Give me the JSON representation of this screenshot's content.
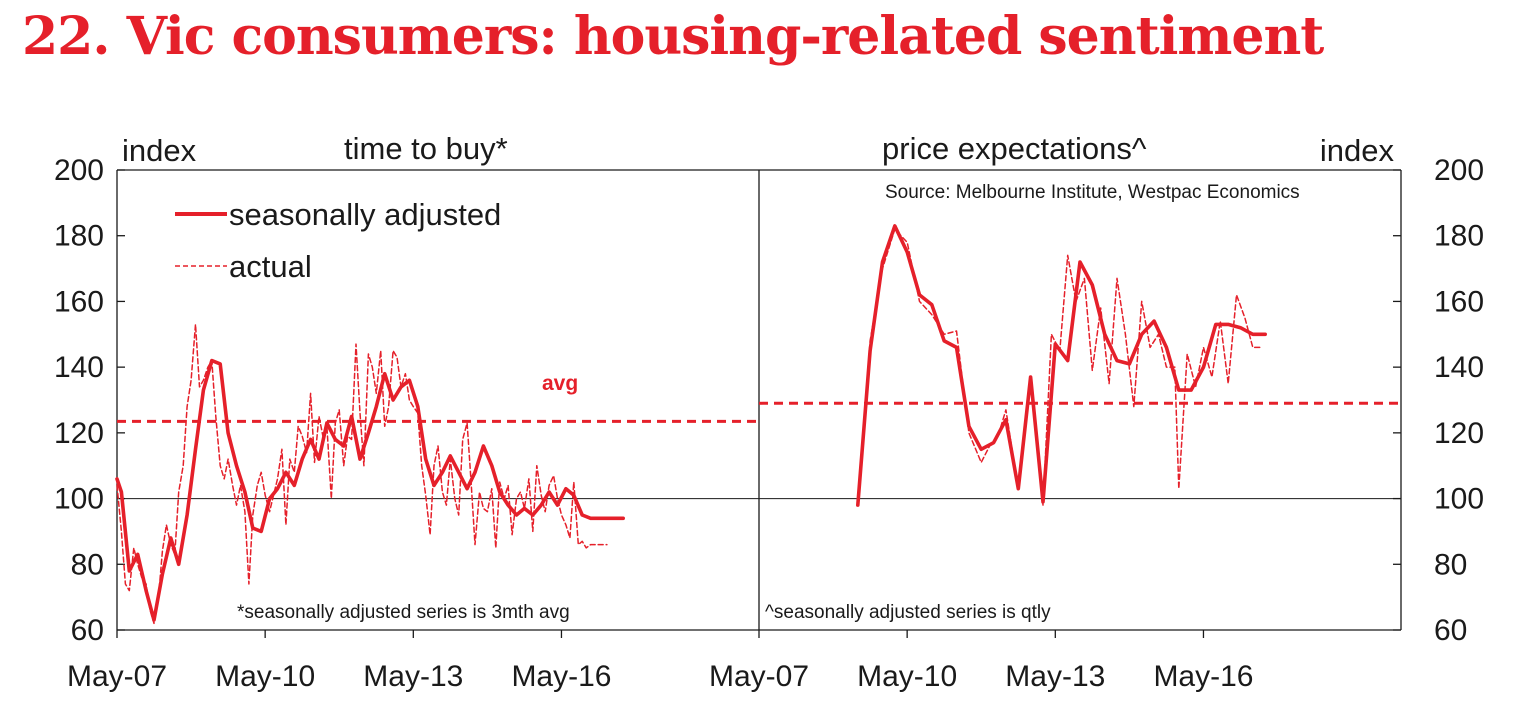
{
  "title": "22. Vic consumers: housing-related sentiment",
  "colors": {
    "accent": "#e5202a",
    "axis": "#1a1a1a"
  },
  "chart_data": [
    {
      "type": "line",
      "title": "time to buy*",
      "ylabel": "index",
      "xlim": [
        2007.33,
        2020.33
      ],
      "ylim": [
        60,
        200
      ],
      "yticks": [
        "200",
        "180",
        "160",
        "140",
        "120",
        "100",
        "80",
        "60"
      ],
      "xticks": [
        "May-07",
        "May-10",
        "May-13",
        "May-16"
      ],
      "legend": {
        "seasonally_adjusted": "seasonally adjusted",
        "actual": "actual",
        "position": "top-left"
      },
      "avg_label": "avg",
      "avg_value": 123.5,
      "reference_line": 100,
      "footnote": "*seasonally adjusted series is 3mth avg",
      "series": [
        {
          "name": "seasonally adjusted",
          "style": "solid",
          "x": [
            2007.33,
            2007.42,
            2007.58,
            2007.75,
            2007.92,
            2008.08,
            2008.25,
            2008.42,
            2008.58,
            2008.75,
            2008.92,
            2009.08,
            2009.25,
            2009.42,
            2009.58,
            2009.75,
            2009.92,
            2010.08,
            2010.25,
            2010.42,
            2010.58,
            2010.75,
            2010.92,
            2011.08,
            2011.25,
            2011.42,
            2011.58,
            2011.75,
            2011.92,
            2012.08,
            2012.25,
            2012.42,
            2012.58,
            2012.75,
            2012.92,
            2013.08,
            2013.25,
            2013.42,
            2013.58,
            2013.75,
            2013.92,
            2014.08,
            2014.25,
            2014.42,
            2014.58,
            2014.75,
            2014.92,
            2015.08,
            2015.25,
            2015.42,
            2015.58,
            2015.75,
            2015.92,
            2016.08,
            2016.25,
            2016.42,
            2016.58,
            2016.75,
            2016.92,
            2017.08,
            2017.25,
            2017.42,
            2017.58
          ],
          "y": [
            106,
            102,
            78,
            83,
            72,
            63,
            77,
            88,
            80,
            95,
            115,
            133,
            142,
            141,
            120,
            110,
            102,
            91,
            90,
            100,
            103,
            108,
            104,
            112,
            118,
            112,
            123,
            118,
            116,
            125,
            112,
            120,
            128,
            138,
            130,
            134,
            136,
            128,
            112,
            104,
            108,
            113,
            108,
            103,
            108,
            116,
            110,
            102,
            98,
            95,
            97,
            95,
            98,
            102,
            98,
            103,
            101,
            95,
            94,
            94,
            94,
            94,
            94
          ]
        },
        {
          "name": "actual",
          "style": "dashed",
          "x": [
            2007.33,
            2007.42,
            2007.5,
            2007.58,
            2007.67,
            2007.75,
            2007.83,
            2007.92,
            2008.0,
            2008.08,
            2008.17,
            2008.25,
            2008.33,
            2008.42,
            2008.5,
            2008.58,
            2008.67,
            2008.75,
            2008.83,
            2008.92,
            2009.0,
            2009.08,
            2009.17,
            2009.25,
            2009.33,
            2009.42,
            2009.5,
            2009.58,
            2009.67,
            2009.75,
            2009.83,
            2009.92,
            2010.0,
            2010.08,
            2010.17,
            2010.25,
            2010.33,
            2010.42,
            2010.5,
            2010.58,
            2010.67,
            2010.75,
            2010.83,
            2010.92,
            2011.0,
            2011.08,
            2011.17,
            2011.25,
            2011.33,
            2011.42,
            2011.5,
            2011.58,
            2011.67,
            2011.75,
            2011.83,
            2011.92,
            2012.0,
            2012.08,
            2012.17,
            2012.25,
            2012.33,
            2012.42,
            2012.5,
            2012.58,
            2012.67,
            2012.75,
            2012.83,
            2012.92,
            2013.0,
            2013.08,
            2013.17,
            2013.25,
            2013.33,
            2013.42,
            2013.5,
            2013.58,
            2013.67,
            2013.75,
            2013.83,
            2013.92,
            2014.0,
            2014.08,
            2014.17,
            2014.25,
            2014.33,
            2014.42,
            2014.5,
            2014.58,
            2014.67,
            2014.75,
            2014.83,
            2014.92,
            2015.0,
            2015.08,
            2015.17,
            2015.25,
            2015.33,
            2015.42,
            2015.5,
            2015.58,
            2015.67,
            2015.75,
            2015.83,
            2015.92,
            2016.0,
            2016.08,
            2016.17,
            2016.25,
            2016.33,
            2016.42,
            2016.5,
            2016.58,
            2016.67,
            2016.75,
            2016.83,
            2016.92,
            2017.0,
            2017.08,
            2017.17,
            2017.25
          ],
          "y": [
            104,
            90,
            74,
            72,
            85,
            80,
            76,
            74,
            66,
            62,
            70,
            84,
            92,
            86,
            83,
            102,
            110,
            128,
            136,
            153,
            134,
            136,
            140,
            142,
            125,
            110,
            106,
            112,
            104,
            98,
            104,
            96,
            74,
            95,
            104,
            108,
            101,
            96,
            101,
            106,
            115,
            92,
            112,
            108,
            122,
            119,
            114,
            132,
            111,
            125,
            119,
            122,
            100,
            123,
            127,
            110,
            119,
            118,
            147,
            126,
            110,
            144,
            140,
            132,
            145,
            122,
            128,
            145,
            143,
            134,
            138,
            130,
            128,
            126,
            110,
            101,
            89,
            110,
            116,
            102,
            98,
            112,
            100,
            95,
            118,
            123,
            105,
            86,
            102,
            97,
            96,
            103,
            85,
            105,
            100,
            104,
            89,
            100,
            102,
            97,
            106,
            90,
            110,
            101,
            96,
            104,
            107,
            100,
            95,
            92,
            88,
            105,
            86,
            87,
            85,
            86,
            86,
            86,
            86,
            86
          ]
        }
      ]
    },
    {
      "type": "line",
      "title": "price expectations^",
      "ylabel": "index",
      "xlim": [
        2007.33,
        2020.33
      ],
      "ylim": [
        60,
        200
      ],
      "yticks": [
        "200",
        "180",
        "160",
        "140",
        "120",
        "100",
        "80",
        "60"
      ],
      "xticks": [
        "May-07",
        "May-10",
        "May-13",
        "May-16"
      ],
      "source": "Source: Melbourne Institute, Westpac Economics",
      "avg_value": 129,
      "reference_line": 100,
      "footnote": "^seasonally adjusted series is qtly",
      "series": [
        {
          "name": "seasonally adjusted",
          "style": "solid",
          "x": [
            2009.33,
            2009.58,
            2009.83,
            2010.08,
            2010.33,
            2010.58,
            2010.83,
            2011.08,
            2011.33,
            2011.58,
            2011.83,
            2012.08,
            2012.33,
            2012.58,
            2012.83,
            2013.08,
            2013.33,
            2013.58,
            2013.83,
            2014.08,
            2014.33,
            2014.58,
            2014.83,
            2015.08,
            2015.33,
            2015.58,
            2015.83,
            2016.08,
            2016.33,
            2016.58,
            2016.83,
            2017.08,
            2017.33,
            2017.58
          ],
          "y": [
            98,
            145,
            172,
            183,
            175,
            162,
            159,
            148,
            146,
            122,
            115,
            117,
            124,
            103,
            137,
            99,
            147,
            142,
            172,
            165,
            150,
            142,
            141,
            150,
            154,
            146,
            133,
            133,
            140,
            153,
            153,
            152,
            150,
            150
          ]
        },
        {
          "name": "actual",
          "style": "dashed",
          "x": [
            2009.33,
            2009.58,
            2009.83,
            2010.08,
            2010.33,
            2010.58,
            2010.83,
            2011.08,
            2011.33,
            2011.58,
            2011.83,
            2012.0,
            2012.17,
            2012.33,
            2012.58,
            2012.83,
            2013.08,
            2013.25,
            2013.42,
            2013.58,
            2013.75,
            2013.92,
            2014.08,
            2014.25,
            2014.42,
            2014.58,
            2014.75,
            2014.92,
            2015.08,
            2015.25,
            2015.42,
            2015.58,
            2015.75,
            2015.83,
            2016.0,
            2016.17,
            2016.33,
            2016.5,
            2016.67,
            2016.83,
            2017.0,
            2017.17,
            2017.33,
            2017.5
          ],
          "y": [
            99,
            148,
            170,
            182,
            178,
            160,
            156,
            150,
            151,
            120,
            111,
            116,
            119,
            127,
            103,
            136,
            98,
            150,
            145,
            174,
            160,
            167,
            139,
            158,
            135,
            167,
            150,
            128,
            160,
            146,
            150,
            140,
            140,
            103,
            144,
            134,
            146,
            137,
            154,
            135,
            162,
            155,
            146,
            146
          ]
        }
      ]
    }
  ]
}
